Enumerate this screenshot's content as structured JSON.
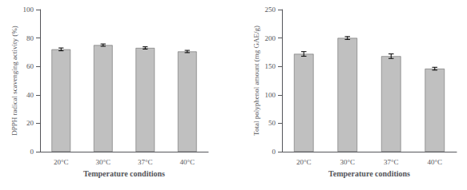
{
  "chart_data": [
    {
      "type": "bar",
      "categories": [
        "20°C",
        "30°C",
        "37°C",
        "40°C"
      ],
      "values": [
        72.0,
        75.0,
        73.0,
        70.5
      ],
      "errors": [
        1.0,
        0.8,
        0.8,
        0.8
      ],
      "color": "#C0C0C0",
      "xlabel": "Temperature conditions",
      "ylabel": "DPPH radical scavenging activity (%)",
      "ylim": [
        0,
        100
      ],
      "yticks": [
        0,
        20,
        40,
        60,
        80,
        100
      ],
      "grid": false
    },
    {
      "type": "bar",
      "categories": [
        "20°C",
        "30°C",
        "37°C",
        "40°C"
      ],
      "values": [
        172.0,
        200.0,
        168.0,
        146.0
      ],
      "errors": [
        4.0,
        2.5,
        4.0,
        2.5
      ],
      "color": "#C0C0C0",
      "xlabel": "Temperature conditions",
      "ylabel": "Total polyphenol amount (mg GAE/g)",
      "ylim": [
        0,
        250
      ],
      "yticks": [
        0,
        50,
        100,
        150,
        200,
        250
      ],
      "grid": false
    }
  ]
}
